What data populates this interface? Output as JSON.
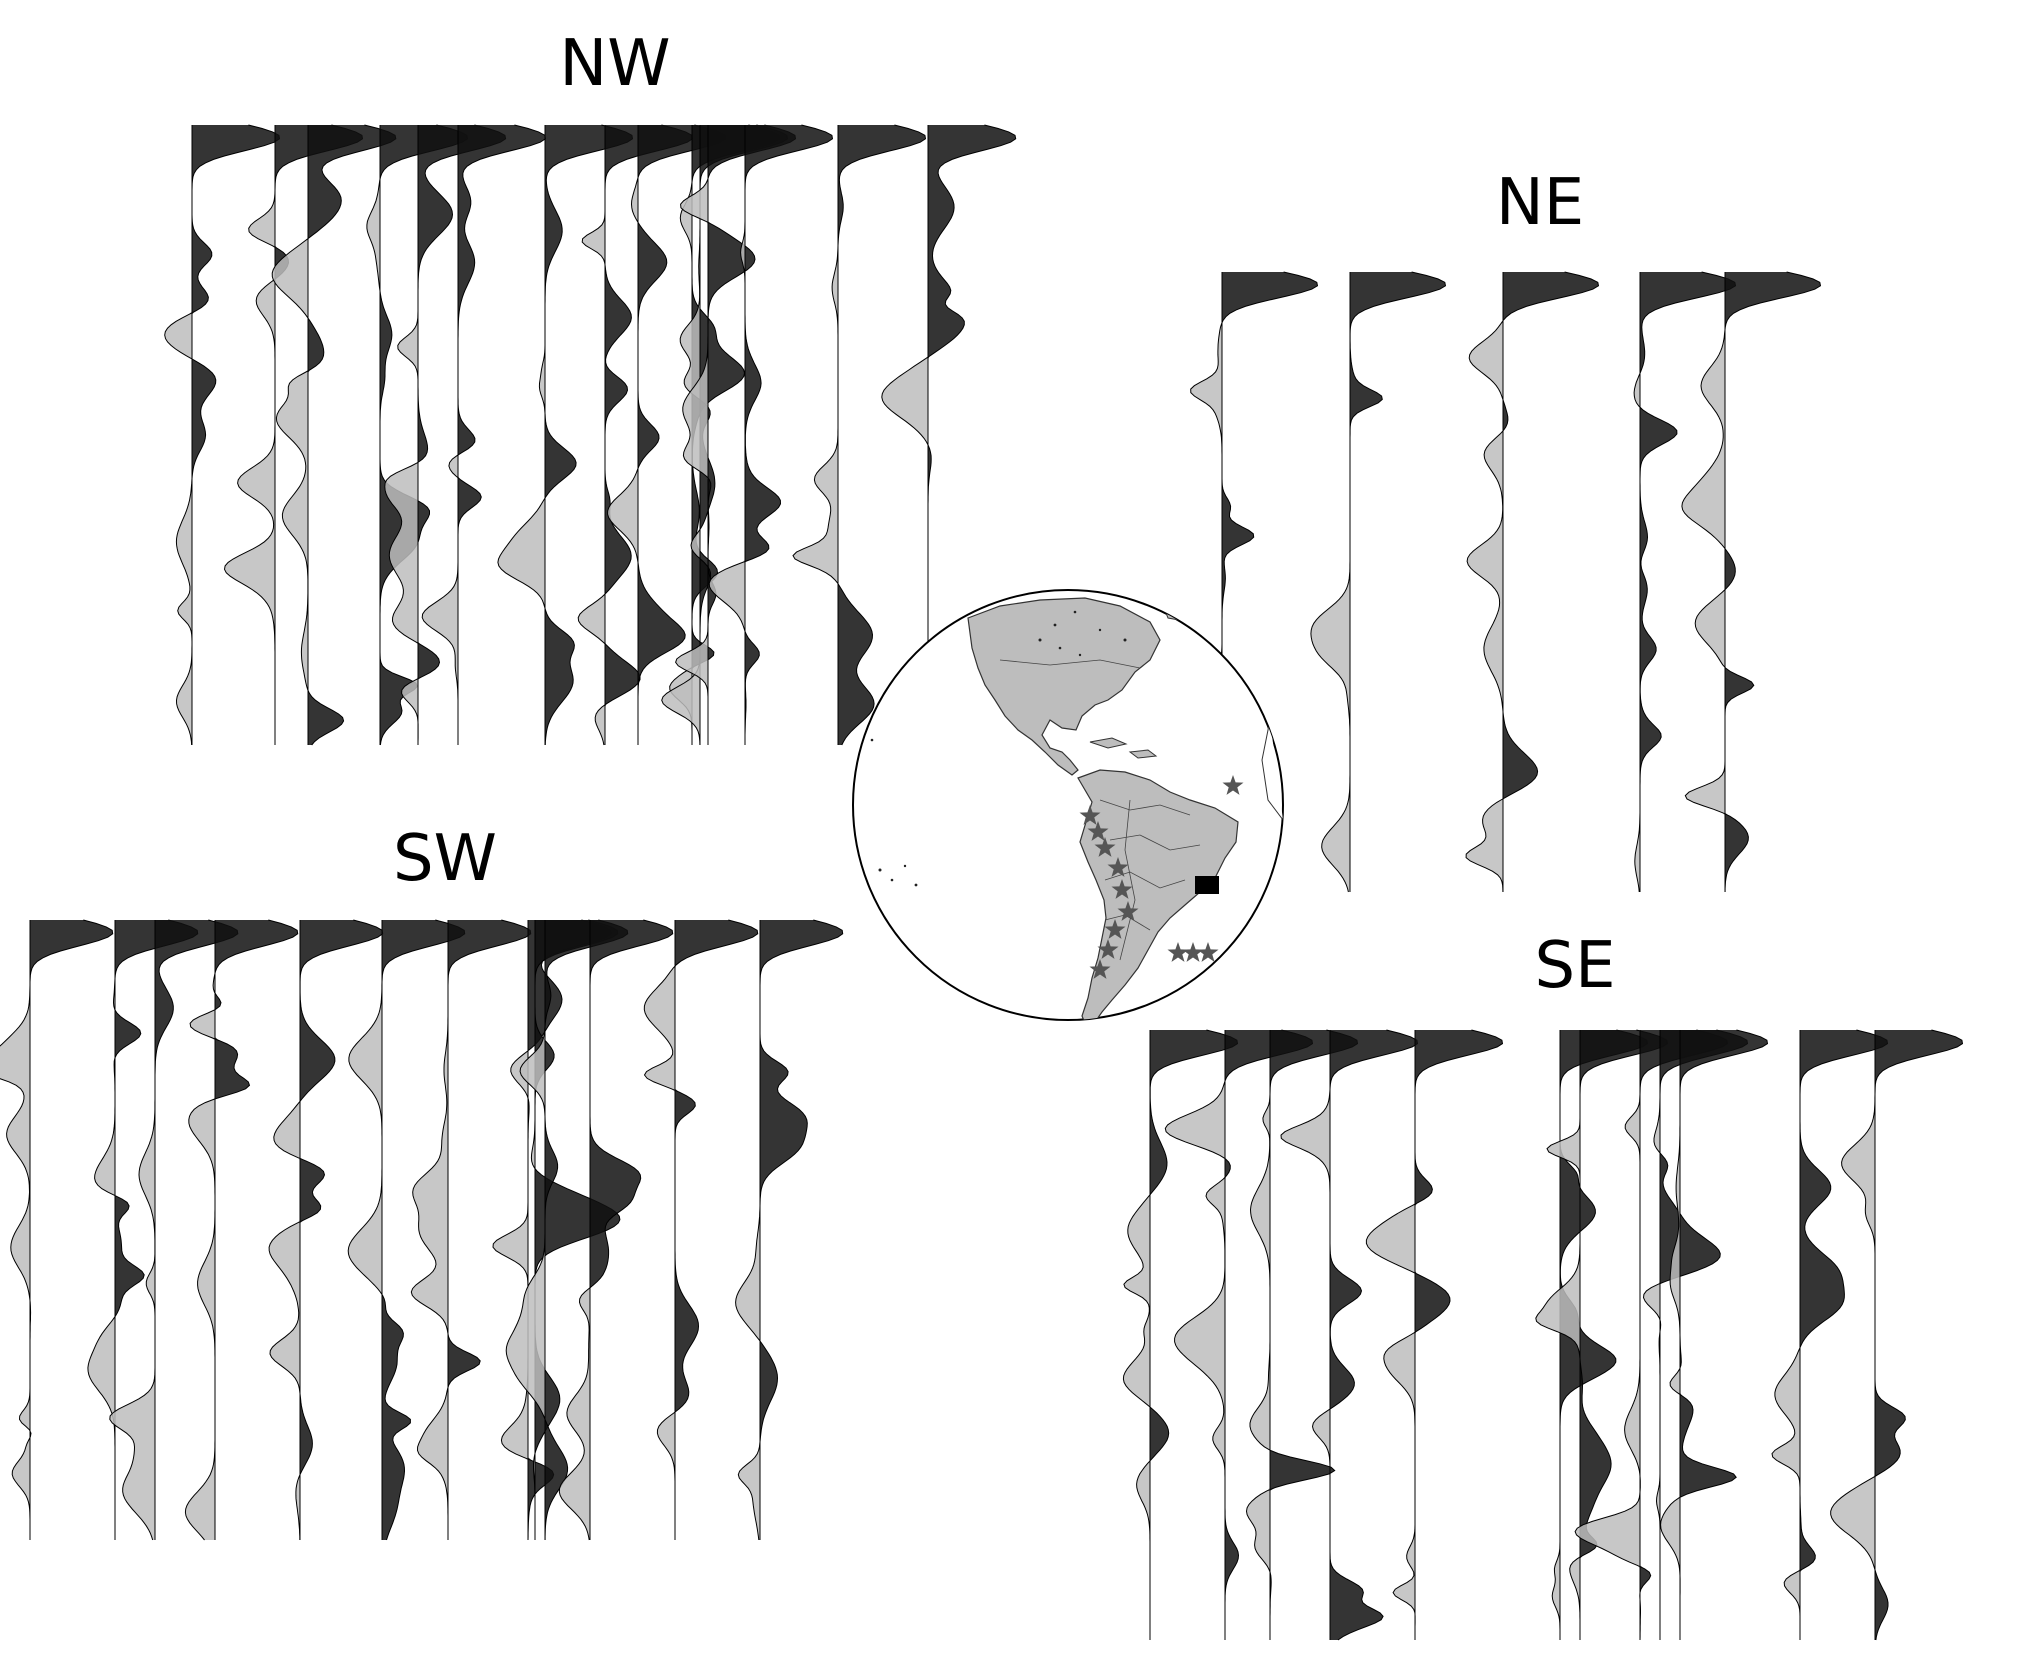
{
  "panels": [
    {
      "id": "nw",
      "label": "NW",
      "traces": 14
    },
    {
      "id": "ne",
      "label": "NE",
      "traces": 6
    },
    {
      "id": "sw",
      "label": "SW",
      "traces": 13
    },
    {
      "id": "se",
      "label": "SE",
      "traces": 14
    }
  ],
  "globe": {
    "features": [
      "land-mass",
      "country-borders",
      "earthquake-star-icon",
      "station-square-icon"
    ],
    "land_color": "#bdbdbd",
    "star_color": "#555555",
    "station_color": "#000000"
  },
  "trace_colors": {
    "positive": "#111111",
    "negative": "#bdbdbd"
  }
}
